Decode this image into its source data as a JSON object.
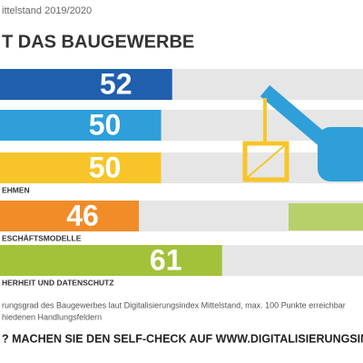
{
  "chart_data": {
    "type": "bar",
    "subtitle": "ittelstand 2019/2020",
    "title": "T DAS BAUGEWERBE",
    "categories": [
      null,
      null,
      "EHMEN",
      "ESCHÄFTSMODELLE",
      "HERHEIT UND DATENSCHUTZ"
    ],
    "values": [
      52,
      50,
      50,
      46,
      61
    ],
    "colors": [
      "#1f5fae",
      "#2e9fd8",
      "#f7c52a",
      "#f28c28",
      "#a3c23a"
    ],
    "xlim": [
      0,
      100
    ],
    "notes": [
      "rungsgrad des Baugewerbes laut Digitalisierungsindex Mittelstand, max. 100 Punkte erreichbar",
      "hiedenen Handlungsfeldern"
    ],
    "call_to_action": "? MACHEN SIE DEN SELF-CHECK AUF WWW.DIGITALISIERUNGSINDEX.DE"
  }
}
